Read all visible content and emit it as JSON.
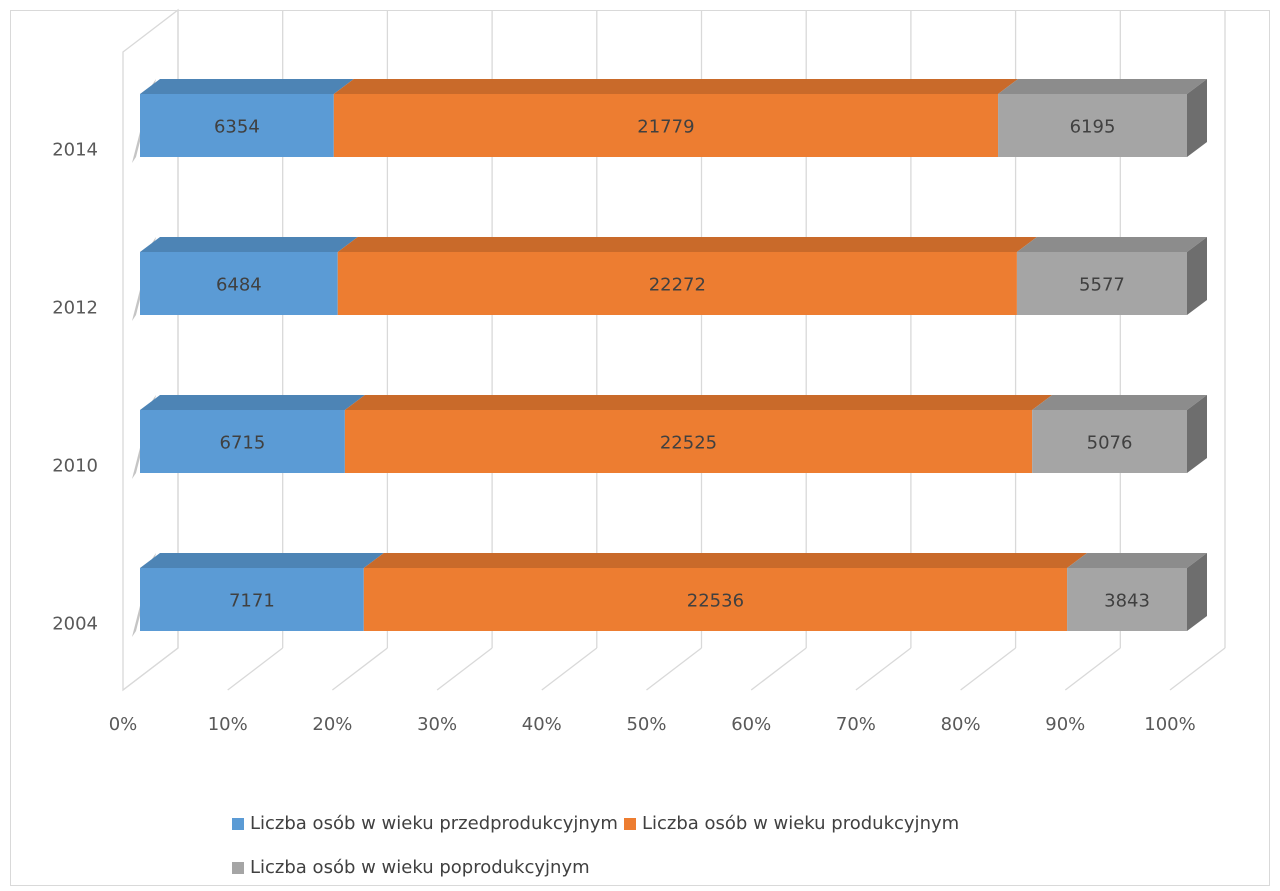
{
  "chart_data": {
    "type": "bar",
    "orientation": "horizontal",
    "stacking": "percent",
    "three_d": true,
    "categories": [
      "2004",
      "2010",
      "2012",
      "2014"
    ],
    "series": [
      {
        "name": "Liczba osób w wieku przedprodukcyjnym",
        "values": [
          7171,
          6715,
          6484,
          6354
        ],
        "color": "#5b9bd5"
      },
      {
        "name": "Liczba osób w wieku produkcyjnym",
        "values": [
          22536,
          22525,
          22272,
          21779
        ],
        "color": "#ed7d31"
      },
      {
        "name": "Liczba osób w wieku poprodukcyjnym",
        "values": [
          3843,
          5076,
          5577,
          6195
        ],
        "color": "#a5a5a5"
      }
    ],
    "x_ticks": [
      "0%",
      "10%",
      "20%",
      "30%",
      "40%",
      "50%",
      "60%",
      "70%",
      "80%",
      "90%",
      "100%"
    ],
    "xlim": [
      0,
      100
    ],
    "grid": true,
    "legend_position": "bottom"
  }
}
